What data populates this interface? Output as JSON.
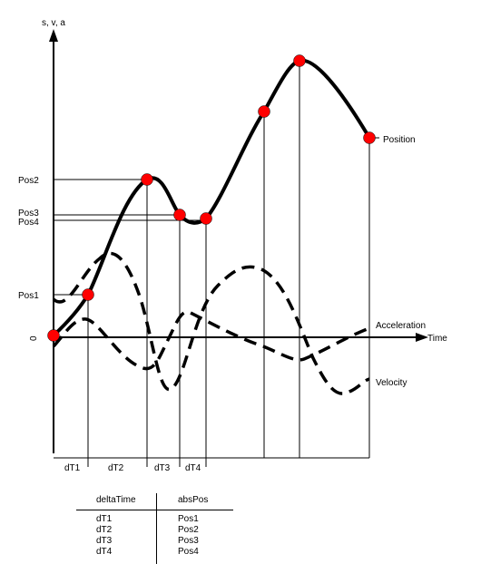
{
  "axes": {
    "y_label": "s, v, a",
    "x_label": "Time",
    "origin_label": "0"
  },
  "y_labels": [
    "Pos2",
    "Pos3",
    "Pos4",
    "Pos1"
  ],
  "curve_labels": {
    "position": "Position",
    "acceleration": "Acceleration",
    "velocity": "Velocity"
  },
  "intervals": [
    "dT1",
    "dT2",
    "dT3",
    "dT4"
  ],
  "table": {
    "headers": [
      "deltaTime",
      "absPos"
    ],
    "rows": [
      [
        "dT1",
        "Pos1"
      ],
      [
        "dT2",
        "Pos2"
      ],
      [
        "dT3",
        "Pos3"
      ],
      [
        "dT4",
        "Pos4"
      ]
    ]
  },
  "colors": {
    "point": "#ff0000",
    "line": "#000000"
  }
}
